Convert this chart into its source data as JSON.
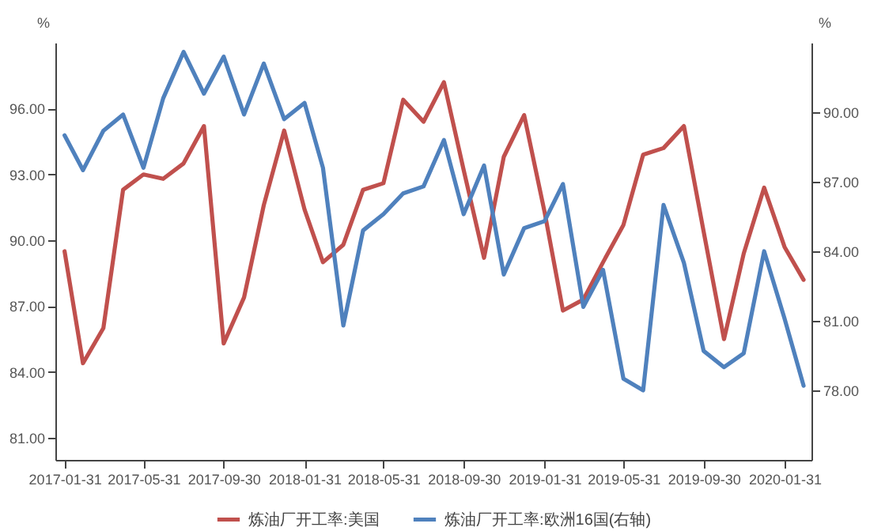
{
  "chart_data": {
    "type": "line",
    "x": [
      "2017-01-31",
      "2017-02-28",
      "2017-03-31",
      "2017-04-30",
      "2017-05-31",
      "2017-06-30",
      "2017-07-31",
      "2017-08-31",
      "2017-09-30",
      "2017-10-31",
      "2017-11-30",
      "2017-12-31",
      "2018-01-31",
      "2018-02-28",
      "2018-03-31",
      "2018-04-30",
      "2018-05-31",
      "2018-06-30",
      "2018-07-31",
      "2018-08-31",
      "2018-09-30",
      "2018-10-31",
      "2018-11-30",
      "2018-12-31",
      "2019-01-31",
      "2019-02-28",
      "2019-03-31",
      "2019-04-30",
      "2019-05-31",
      "2019-06-30",
      "2019-07-31",
      "2019-08-31",
      "2019-09-30",
      "2019-10-31",
      "2019-11-30",
      "2019-12-31",
      "2020-01-31",
      "2020-02-29"
    ],
    "series": [
      {
        "name": "炼油厂开工率:美国",
        "color": "#c0504d",
        "values": [
          89.5,
          84.4,
          86.0,
          92.3,
          93.0,
          92.8,
          93.5,
          95.2,
          85.3,
          87.4,
          91.6,
          95.0,
          91.4,
          89.0,
          89.8,
          92.3,
          92.6,
          96.4,
          95.4,
          97.2,
          93.2,
          89.2,
          93.8,
          95.7,
          91.3,
          86.8,
          87.3,
          89.0,
          90.7,
          93.9,
          94.2,
          95.2,
          90.4,
          85.5,
          89.4,
          92.4,
          89.7,
          88.2
        ]
      },
      {
        "name": "炼油厂开工率:欧洲16国(右轴)",
        "color": "#4f81bd",
        "axis": "y2",
        "values": [
          89.0,
          87.5,
          89.2,
          89.9,
          87.6,
          90.6,
          92.6,
          90.8,
          92.4,
          89.9,
          92.1,
          89.7,
          90.4,
          87.6,
          80.8,
          84.9,
          85.6,
          86.5,
          86.8,
          88.8,
          85.6,
          87.7,
          83.0,
          85.0,
          85.3,
          86.9,
          81.6,
          83.2,
          78.5,
          78.0,
          86.0,
          83.5,
          79.7,
          79.0,
          79.6,
          84.0,
          81.1,
          78.2
        ]
      }
    ],
    "ylabel": "%",
    "y2label": "%",
    "xlim": [
      "2017-01-17",
      "2020-03-12"
    ],
    "xticks": [
      "2017-01-31",
      "2017-05-31",
      "2017-09-30",
      "2018-01-31",
      "2018-05-31",
      "2018-09-30",
      "2019-01-31",
      "2019-05-31",
      "2019-09-30",
      "2020-01-31"
    ],
    "ylim": [
      80,
      99
    ],
    "yticks": [
      {
        "value": 81,
        "label": "81.00"
      },
      {
        "value": 84,
        "label": "84.00"
      },
      {
        "value": 87,
        "label": "87.00"
      },
      {
        "value": 90,
        "label": "90.00"
      },
      {
        "value": 93,
        "label": "93.00"
      },
      {
        "value": 96,
        "label": "96.00"
      }
    ],
    "y2lim": [
      75,
      93
    ],
    "y2ticks": [
      {
        "value": 78,
        "label": "78.00"
      },
      {
        "value": 81,
        "label": "81.00"
      },
      {
        "value": 84,
        "label": "84.00"
      },
      {
        "value": 87,
        "label": "87.00"
      },
      {
        "value": 90,
        "label": "90.00"
      }
    ],
    "legend": "bottom"
  }
}
